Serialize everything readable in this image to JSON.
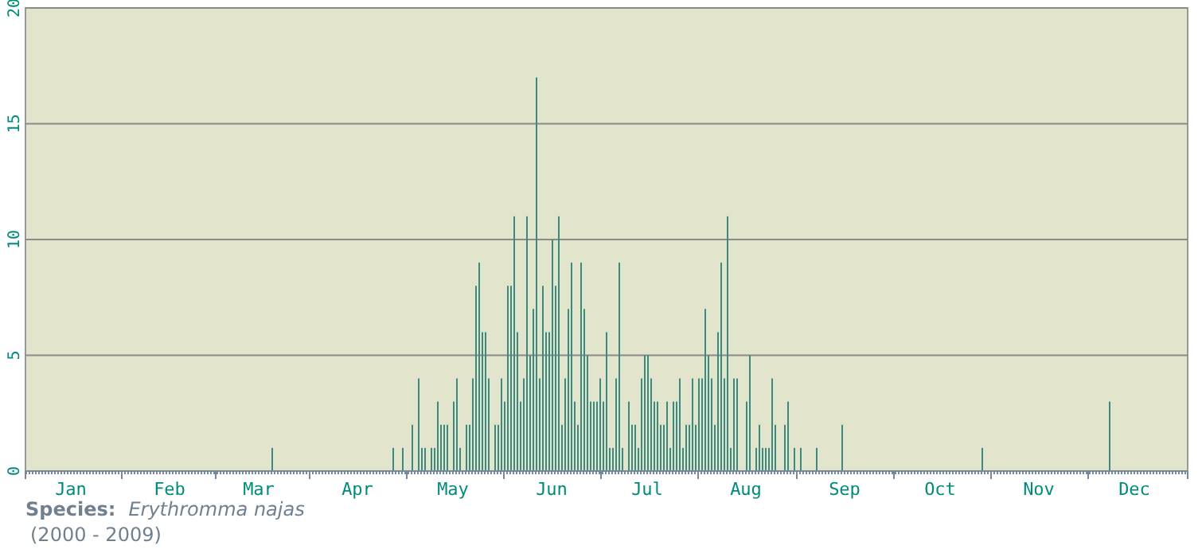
{
  "chart_data": {
    "type": "bar",
    "categories": [
      null,
      null,
      null,
      null,
      null,
      null,
      null,
      null,
      null,
      null,
      null,
      null,
      null,
      null,
      "Jan",
      null,
      null,
      null,
      null,
      null,
      null,
      null,
      null,
      null,
      null,
      null,
      null,
      null,
      null,
      null,
      null,
      null,
      null,
      null,
      null,
      null,
      null,
      null,
      null,
      null,
      null,
      null,
      null,
      null,
      null,
      "Feb",
      null,
      null,
      null,
      null,
      null,
      null,
      null,
      null,
      null,
      null,
      null,
      null,
      null,
      null,
      null,
      null,
      null,
      null,
      null,
      null,
      null,
      null,
      null,
      null,
      null,
      null,
      null,
      "Mar",
      null,
      null,
      null,
      null,
      null,
      null,
      null,
      null,
      null,
      null,
      null,
      null,
      null,
      null,
      null,
      null,
      null,
      null,
      null,
      null,
      null,
      null,
      null,
      null,
      null,
      null,
      null,
      null,
      null,
      null,
      "Apr",
      null,
      null,
      null,
      null,
      null,
      null,
      null,
      null,
      null,
      null,
      null,
      null,
      null,
      null,
      null,
      null,
      null,
      null,
      null,
      null,
      null,
      null,
      null,
      null,
      null,
      null,
      null,
      null,
      null,
      "May",
      null,
      null,
      null,
      null,
      null,
      null,
      null,
      null,
      null,
      null,
      null,
      null,
      null,
      null,
      null,
      null,
      null,
      null,
      null,
      null,
      null,
      null,
      null,
      null,
      null,
      null,
      null,
      null,
      null,
      null,
      "Jun",
      null,
      null,
      null,
      null,
      null,
      null,
      null,
      null,
      null,
      null,
      null,
      null,
      null,
      null,
      null,
      null,
      null,
      null,
      null,
      null,
      null,
      null,
      null,
      null,
      null,
      null,
      null,
      null,
      null,
      "Jul",
      null,
      null,
      null,
      null,
      null,
      null,
      null,
      null,
      null,
      null,
      null,
      null,
      null,
      null,
      null,
      null,
      null,
      null,
      null,
      null,
      null,
      null,
      null,
      null,
      null,
      null,
      null,
      null,
      null,
      null,
      "Aug",
      null,
      null,
      null,
      null,
      null,
      null,
      null,
      null,
      null,
      null,
      null,
      null,
      null,
      null,
      null,
      null,
      null,
      null,
      null,
      null,
      null,
      null,
      null,
      null,
      null,
      null,
      null,
      null,
      null,
      null,
      "Sep",
      null,
      null,
      null,
      null,
      null,
      null,
      null,
      null,
      null,
      null,
      null,
      null,
      null,
      null,
      null,
      null,
      null,
      null,
      null,
      null,
      null,
      null,
      null,
      null,
      null,
      null,
      null,
      null,
      null,
      "Oct",
      null,
      null,
      null,
      null,
      null,
      null,
      null,
      null,
      null,
      null,
      null,
      null,
      null,
      null,
      null,
      null,
      null,
      null,
      null,
      null,
      null,
      null,
      null,
      null,
      null,
      null,
      null,
      null,
      null,
      null,
      "Nov",
      null,
      null,
      null,
      null,
      null,
      null,
      null,
      null,
      null,
      null,
      null,
      null,
      null,
      null,
      null,
      null,
      null,
      null,
      null,
      null,
      null,
      null,
      null,
      null,
      null,
      null,
      null,
      null,
      null,
      "Dec",
      null,
      null,
      null,
      null,
      null,
      null,
      null,
      null,
      null,
      null,
      null,
      null,
      null,
      null,
      null,
      null
    ],
    "values": [
      0,
      0,
      0,
      0,
      0,
      0,
      0,
      0,
      0,
      0,
      0,
      0,
      0,
      0,
      0,
      0,
      0,
      0,
      0,
      0,
      0,
      0,
      0,
      0,
      0,
      0,
      0,
      0,
      0,
      0,
      0,
      0,
      0,
      0,
      0,
      0,
      0,
      0,
      0,
      0,
      0,
      0,
      0,
      0,
      0,
      0,
      0,
      0,
      0,
      0,
      0,
      0,
      0,
      0,
      0,
      0,
      0,
      0,
      0,
      0,
      0,
      0,
      0,
      0,
      0,
      0,
      0,
      0,
      0,
      0,
      0,
      0,
      0,
      0,
      0,
      0,
      0,
      1,
      0,
      0,
      0,
      0,
      0,
      0,
      0,
      0,
      0,
      0,
      0,
      0,
      0,
      0,
      0,
      0,
      0,
      0,
      0,
      0,
      0,
      0,
      0,
      0,
      0,
      0,
      0,
      0,
      0,
      0,
      0,
      0,
      0,
      0,
      0,
      0,
      0,
      1,
      0,
      0,
      1,
      0,
      0,
      2,
      0,
      4,
      1,
      1,
      0,
      1,
      1,
      3,
      2,
      2,
      2,
      0,
      3,
      4,
      1,
      0,
      2,
      2,
      4,
      8,
      9,
      6,
      6,
      4,
      0,
      2,
      2,
      4,
      3,
      8,
      8,
      11,
      6,
      3,
      4,
      11,
      5,
      7,
      17,
      4,
      8,
      6,
      6,
      10,
      8,
      11,
      2,
      4,
      7,
      9,
      3,
      2,
      9,
      7,
      5,
      3,
      3,
      3,
      4,
      3,
      6,
      1,
      1,
      4,
      9,
      1,
      0,
      3,
      2,
      2,
      1,
      4,
      5,
      5,
      4,
      3,
      3,
      2,
      2,
      3,
      1,
      3,
      3,
      4,
      1,
      2,
      2,
      4,
      2,
      4,
      4,
      7,
      5,
      4,
      2,
      6,
      9,
      4,
      11,
      1,
      4,
      4,
      0,
      0,
      3,
      5,
      0,
      1,
      2,
      1,
      1,
      1,
      4,
      2,
      0,
      0,
      2,
      3,
      0,
      1,
      0,
      1,
      0,
      0,
      0,
      0,
      1,
      0,
      0,
      0,
      0,
      0,
      0,
      0,
      2,
      0,
      0,
      0,
      0,
      0,
      0,
      0,
      0,
      0,
      0,
      0,
      0,
      0,
      0,
      0,
      0,
      0,
      0,
      0,
      0,
      0,
      0,
      0,
      0,
      0,
      0,
      0,
      0,
      0,
      0,
      0,
      0,
      0,
      0,
      0,
      0,
      0,
      0,
      0,
      0,
      0,
      0,
      0,
      1,
      0,
      0,
      0,
      0,
      0,
      0,
      0,
      0,
      0,
      0,
      0,
      0,
      0,
      0,
      0,
      0,
      0,
      0,
      0,
      0,
      0,
      0,
      0,
      0,
      0,
      0,
      0,
      0,
      0,
      0,
      0,
      0,
      0,
      0,
      0,
      0,
      0,
      0,
      0,
      3,
      0,
      0,
      0,
      0,
      0,
      0,
      0,
      0,
      0,
      0,
      0,
      0,
      0,
      0,
      0,
      0,
      0,
      0,
      0,
      0,
      0,
      0,
      0,
      0
    ],
    "color": "#3a8a80",
    "ylim": [
      0,
      20
    ],
    "yticks": [
      0,
      5,
      10,
      15,
      20
    ],
    "grid": "y",
    "annotations": [
      "Species:",
      "Erythromma najas",
      "(2000 - 2009)"
    ]
  }
}
